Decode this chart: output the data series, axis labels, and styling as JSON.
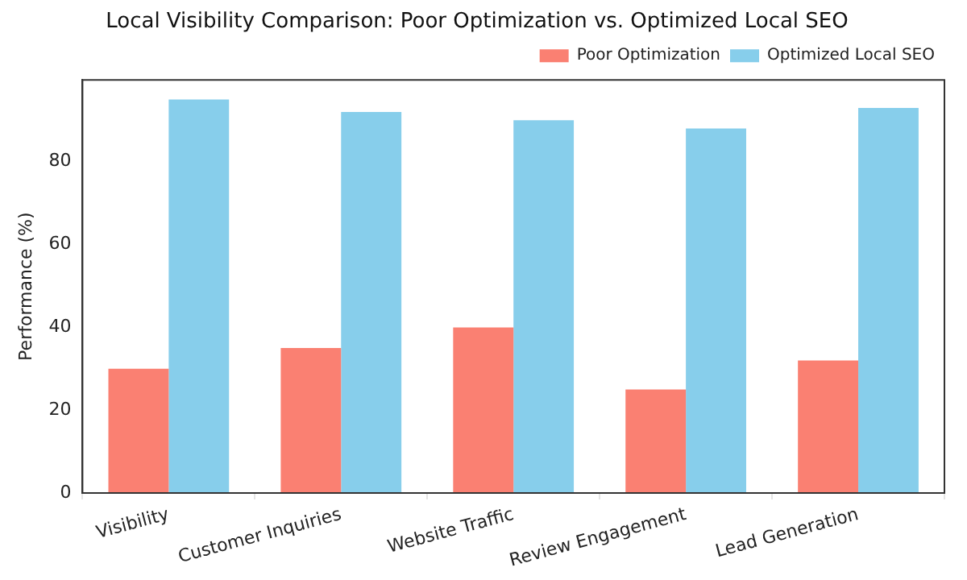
{
  "chart_data": {
    "type": "bar",
    "title": "Local Visibility Comparison: Poor Optimization vs. Optimized Local SEO",
    "ylabel": "Performance (%)",
    "categories": [
      "Visibility",
      "Customer Inquiries",
      "Website Traffic",
      "Review Engagement",
      "Lead Generation"
    ],
    "series": [
      {
        "name": "Poor Optimization",
        "color": "#fa8072",
        "values": [
          30,
          35,
          40,
          25,
          32
        ]
      },
      {
        "name": "Optimized Local SEO",
        "color": "#87ceeb",
        "values": [
          95,
          92,
          90,
          88,
          93
        ]
      }
    ],
    "ylim": [
      0,
      99.75
    ],
    "yticks": [
      0,
      20,
      40,
      60,
      80
    ],
    "grid": false,
    "legend": "top right"
  }
}
